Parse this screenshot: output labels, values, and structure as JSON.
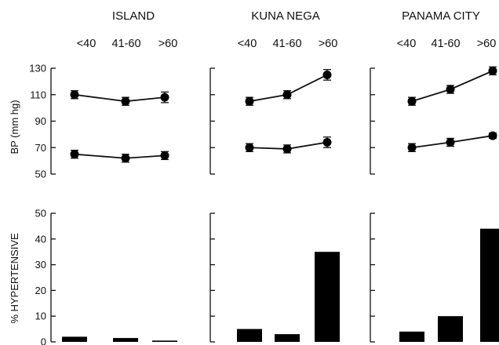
{
  "figure": {
    "sites": [
      "ISLAND",
      "KUNA NEGA",
      "PANAMA CITY"
    ],
    "age_groups": [
      "<40",
      "41-60",
      ">60"
    ],
    "ylabel_top": "BP (mm hg)",
    "ylabel_bottom": "% HYPERTENSIVE"
  },
  "chart_data": [
    {
      "type": "line",
      "panel": "blood-pressure",
      "ylabel": "BP (mm hg)",
      "ylim": [
        50,
        130
      ],
      "yticks": [
        50,
        70,
        90,
        110,
        130
      ],
      "categories": [
        "<40",
        "41-60",
        ">60"
      ],
      "sites": [
        {
          "site": "ISLAND",
          "series": [
            {
              "values": [
                110,
                105,
                108
              ],
              "errors": [
                3,
                3,
                4
              ]
            },
            {
              "values": [
                65,
                62,
                64
              ],
              "errors": [
                3,
                3,
                3
              ]
            }
          ]
        },
        {
          "site": "KUNA NEGA",
          "series": [
            {
              "values": [
                105,
                110,
                125
              ],
              "errors": [
                3,
                3,
                4
              ]
            },
            {
              "values": [
                70,
                69,
                74
              ],
              "errors": [
                3,
                3,
                4
              ]
            }
          ]
        },
        {
          "site": "PANAMA CITY",
          "series": [
            {
              "values": [
                105,
                114,
                128
              ],
              "errors": [
                3,
                3,
                3
              ]
            },
            {
              "values": [
                70,
                74,
                79
              ],
              "errors": [
                3,
                3,
                2
              ]
            }
          ]
        }
      ]
    },
    {
      "type": "bar",
      "panel": "hypertensive",
      "ylabel": "% HYPERTENSIVE",
      "ylim": [
        0,
        50
      ],
      "yticks": [
        0,
        10,
        20,
        30,
        40,
        50
      ],
      "categories": [
        "<40",
        "41-60",
        ">60"
      ],
      "sites": [
        {
          "site": "ISLAND",
          "values": [
            2,
            1.5,
            0.5
          ]
        },
        {
          "site": "KUNA NEGA",
          "values": [
            5,
            3,
            35
          ]
        },
        {
          "site": "PANAMA CITY",
          "values": [
            4,
            10,
            44
          ]
        }
      ]
    }
  ]
}
